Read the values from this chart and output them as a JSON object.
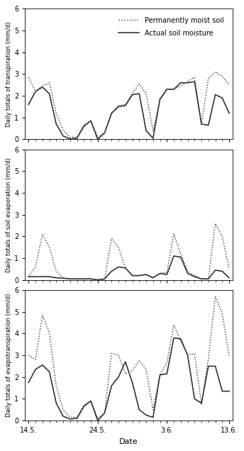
{
  "x_days": [
    0,
    1,
    2,
    3,
    4,
    5,
    6,
    7,
    8,
    9,
    10,
    11,
    12,
    13,
    14,
    15,
    16,
    17,
    18,
    19,
    20,
    21,
    22,
    23,
    24,
    25,
    26,
    27,
    28,
    29
  ],
  "x_labels": [
    "14.5.",
    "24.5.",
    "3.6.",
    "13.6."
  ],
  "x_tick_positions": [
    0,
    10,
    20,
    29
  ],
  "transpiration_dotted": [
    2.85,
    2.2,
    2.45,
    2.6,
    1.2,
    0.4,
    0.1,
    0.1,
    0.65,
    0.85,
    0.1,
    0.3,
    1.2,
    1.55,
    1.6,
    2.1,
    2.55,
    2.1,
    0.4,
    1.8,
    2.3,
    2.3,
    2.45,
    2.65,
    2.85,
    0.7,
    2.8,
    3.1,
    2.9,
    2.5
  ],
  "transpiration_solid": [
    1.6,
    2.2,
    2.4,
    2.1,
    0.7,
    0.15,
    0.02,
    0.05,
    0.6,
    0.85,
    0.0,
    0.3,
    1.2,
    1.5,
    1.55,
    2.05,
    2.1,
    0.4,
    0.05,
    1.85,
    2.3,
    2.3,
    2.6,
    2.6,
    2.65,
    0.7,
    0.65,
    2.05,
    1.9,
    1.2
  ],
  "soil_evap_dotted": [
    0.15,
    0.6,
    2.1,
    1.5,
    0.4,
    0.1,
    0.05,
    0.05,
    0.05,
    0.05,
    0.0,
    0.05,
    1.9,
    1.5,
    0.55,
    0.2,
    0.2,
    0.25,
    0.1,
    0.3,
    0.35,
    2.1,
    1.2,
    0.4,
    0.2,
    0.05,
    0.05,
    2.6,
    2.0,
    0.5
  ],
  "soil_evap_solid": [
    0.15,
    0.15,
    0.15,
    0.15,
    0.1,
    0.08,
    0.05,
    0.05,
    0.05,
    0.05,
    0.0,
    0.05,
    0.4,
    0.6,
    0.55,
    0.2,
    0.2,
    0.25,
    0.1,
    0.3,
    0.25,
    1.1,
    1.05,
    0.3,
    0.15,
    0.05,
    0.05,
    0.45,
    0.4,
    0.1
  ],
  "et_dotted": [
    3.0,
    2.8,
    4.85,
    4.05,
    1.6,
    0.5,
    0.15,
    0.15,
    0.7,
    0.9,
    0.1,
    0.35,
    3.1,
    3.0,
    2.15,
    2.3,
    2.75,
    2.35,
    0.5,
    2.1,
    2.65,
    4.4,
    3.65,
    3.05,
    3.05,
    0.75,
    2.85,
    5.7,
    4.9,
    3.0
  ],
  "et_solid": [
    1.75,
    2.35,
    2.55,
    2.25,
    0.8,
    0.2,
    0.07,
    0.1,
    0.65,
    0.9,
    0.0,
    0.35,
    1.6,
    2.0,
    2.7,
    1.75,
    0.5,
    0.25,
    0.15,
    2.1,
    2.15,
    3.8,
    3.75,
    3.0,
    1.0,
    0.8,
    2.5,
    2.5,
    1.35,
    1.35
  ],
  "ylabel1": "Daily totals of transpiration (mm/d)",
  "ylabel2": "Daily totals of soil evaporation (mm/d)",
  "ylabel3": "Daily totals of evapotranspiration (mm/d)",
  "xlabel": "Date",
  "legend_dotted": "Permanently moist soil",
  "legend_solid": "Actual soil moisture",
  "ylim": [
    0,
    6
  ],
  "yticks": [
    0,
    1,
    2,
    3,
    4,
    5,
    6
  ],
  "bg_color": "#ffffff",
  "line_color": "#333333",
  "dotted_lw": 1.0,
  "solid_lw": 1.2
}
